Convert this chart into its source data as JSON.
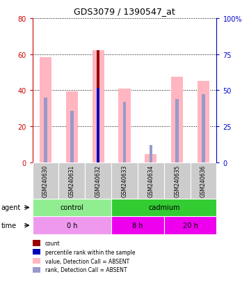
{
  "title": "GDS3079 / 1390547_at",
  "samples": [
    "GSM240630",
    "GSM240631",
    "GSM240632",
    "GSM240633",
    "GSM240634",
    "GSM240635",
    "GSM240636"
  ],
  "value_bars": [
    58.5,
    39.5,
    62.0,
    41.0,
    4.5,
    47.5,
    45.0
  ],
  "rank_bars": [
    36.0,
    28.5,
    41.5,
    33.5,
    9.5,
    35.0,
    38.0
  ],
  "count_bar_idx": 2,
  "count_bar_value": 62.0,
  "percentile_rank_value": 41.5,
  "ylim_left": [
    0,
    80
  ],
  "ylim_right": [
    0,
    100
  ],
  "yticks_left": [
    0,
    20,
    40,
    60,
    80
  ],
  "yticks_right": [
    0,
    25,
    50,
    75,
    100
  ],
  "yticklabels_right": [
    "0",
    "25",
    "50",
    "75",
    "100%"
  ],
  "agent_labels": [
    {
      "label": "control",
      "span": [
        0,
        3
      ],
      "color": "#90EE90"
    },
    {
      "label": "cadmium",
      "span": [
        3,
        7
      ],
      "color": "#33CC33"
    }
  ],
  "time_labels": [
    {
      "label": "0 h",
      "span": [
        0,
        3
      ],
      "color": "#EE99EE"
    },
    {
      "label": "8 h",
      "span": [
        3,
        5
      ],
      "color": "#EE00EE"
    },
    {
      "label": "20 h",
      "span": [
        5,
        7
      ],
      "color": "#EE00EE"
    }
  ],
  "bar_width": 0.45,
  "rank_bar_width": 0.12,
  "value_color": "#FFB6C1",
  "rank_color": "#9999CC",
  "count_color": "#990000",
  "percentile_color": "#0000BB",
  "left_tick_color": "#CC0000",
  "right_tick_color": "#0000CC",
  "legend_items": [
    {
      "color": "#990000",
      "label": "count"
    },
    {
      "color": "#0000BB",
      "label": "percentile rank within the sample"
    },
    {
      "color": "#FFB6C1",
      "label": "value, Detection Call = ABSENT"
    },
    {
      "color": "#9999CC",
      "label": "rank, Detection Call = ABSENT"
    }
  ],
  "sample_box_color": "#CCCCCC"
}
